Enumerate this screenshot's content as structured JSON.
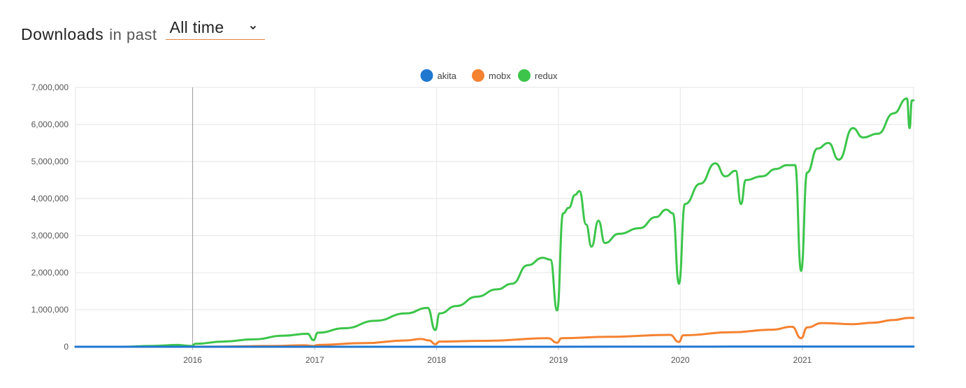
{
  "header": {
    "title": "Downloads",
    "subtitle": "in past",
    "period_select": {
      "value": "All time"
    }
  },
  "chart_data": {
    "type": "line",
    "xlabel": "",
    "ylabel": "",
    "ylim": [
      0,
      7000000
    ],
    "yticks": [
      "0",
      "1,000,000",
      "2,000,000",
      "3,000,000",
      "4,000,000",
      "5,000,000",
      "6,000,000",
      "7,000,000"
    ],
    "xticks": [
      "2016",
      "2017",
      "2018",
      "2019",
      "2020",
      "2021"
    ],
    "grid": true,
    "legend_position": "top-center",
    "series": [
      {
        "name": "akita",
        "color": "#1f77d0",
        "points": [
          [
            "2015-01-15",
            0
          ],
          [
            "2017-06-01",
            0
          ],
          [
            "2018-06-01",
            400
          ],
          [
            "2019-06-01",
            1500
          ],
          [
            "2020-06-01",
            3000
          ],
          [
            "2021-11-30",
            5000
          ]
        ]
      },
      {
        "name": "mobx",
        "color": "#f58231",
        "points": [
          [
            "2015-01-15",
            0
          ],
          [
            "2015-12-01",
            0
          ],
          [
            "2016-04-01",
            5000
          ],
          [
            "2016-09-01",
            20000
          ],
          [
            "2016-12-01",
            40000
          ],
          [
            "2016-12-28",
            20000
          ],
          [
            "2017-01-10",
            50000
          ],
          [
            "2017-06-01",
            100000
          ],
          [
            "2017-10-01",
            170000
          ],
          [
            "2017-11-15",
            210000
          ],
          [
            "2017-12-10",
            170000
          ],
          [
            "2017-12-28",
            70000
          ],
          [
            "2018-01-10",
            140000
          ],
          [
            "2018-06-01",
            160000
          ],
          [
            "2018-12-01",
            230000
          ],
          [
            "2018-12-28",
            110000
          ],
          [
            "2019-01-10",
            230000
          ],
          [
            "2019-06-01",
            270000
          ],
          [
            "2019-12-01",
            320000
          ],
          [
            "2019-12-28",
            130000
          ],
          [
            "2020-01-10",
            310000
          ],
          [
            "2020-06-01",
            390000
          ],
          [
            "2020-10-01",
            460000
          ],
          [
            "2020-12-01",
            540000
          ],
          [
            "2020-12-28",
            230000
          ],
          [
            "2021-01-15",
            520000
          ],
          [
            "2021-03-01",
            640000
          ],
          [
            "2021-06-01",
            610000
          ],
          [
            "2021-08-01",
            650000
          ],
          [
            "2021-10-01",
            720000
          ],
          [
            "2021-11-15",
            780000
          ],
          [
            "2021-11-30",
            780000
          ]
        ]
      },
      {
        "name": "redux",
        "color": "#3cc54a",
        "points": [
          [
            "2015-01-15",
            0
          ],
          [
            "2015-06-01",
            0
          ],
          [
            "2015-09-01",
            20000
          ],
          [
            "2015-11-15",
            50000
          ],
          [
            "2015-12-28",
            20000
          ],
          [
            "2016-01-10",
            80000
          ],
          [
            "2016-04-01",
            140000
          ],
          [
            "2016-07-01",
            200000
          ],
          [
            "2016-10-01",
            300000
          ],
          [
            "2016-12-10",
            350000
          ],
          [
            "2016-12-28",
            180000
          ],
          [
            "2017-01-10",
            380000
          ],
          [
            "2017-04-01",
            500000
          ],
          [
            "2017-07-01",
            700000
          ],
          [
            "2017-10-01",
            900000
          ],
          [
            "2017-12-05",
            1050000
          ],
          [
            "2017-12-28",
            450000
          ],
          [
            "2018-01-10",
            900000
          ],
          [
            "2018-03-01",
            1100000
          ],
          [
            "2018-05-01",
            1350000
          ],
          [
            "2018-07-01",
            1550000
          ],
          [
            "2018-08-15",
            1700000
          ],
          [
            "2018-10-01",
            2200000
          ],
          [
            "2018-11-15",
            2400000
          ],
          [
            "2018-12-08",
            2350000
          ],
          [
            "2018-12-28",
            980000
          ],
          [
            "2019-01-15",
            3600000
          ],
          [
            "2019-02-01",
            3750000
          ],
          [
            "2019-02-20",
            4100000
          ],
          [
            "2019-03-05",
            4200000
          ],
          [
            "2019-03-25",
            3300000
          ],
          [
            "2019-04-10",
            2700000
          ],
          [
            "2019-05-01",
            3400000
          ],
          [
            "2019-05-20",
            2800000
          ],
          [
            "2019-07-01",
            3050000
          ],
          [
            "2019-09-01",
            3200000
          ],
          [
            "2019-10-20",
            3500000
          ],
          [
            "2019-11-20",
            3700000
          ],
          [
            "2019-12-10",
            3600000
          ],
          [
            "2019-12-28",
            1700000
          ],
          [
            "2020-01-15",
            3850000
          ],
          [
            "2020-03-01",
            4400000
          ],
          [
            "2020-04-15",
            4950000
          ],
          [
            "2020-05-15",
            4600000
          ],
          [
            "2020-06-15",
            4750000
          ],
          [
            "2020-07-01",
            3850000
          ],
          [
            "2020-07-15",
            4500000
          ],
          [
            "2020-09-01",
            4600000
          ],
          [
            "2020-10-15",
            4800000
          ],
          [
            "2020-11-15",
            4900000
          ],
          [
            "2020-12-10",
            4900000
          ],
          [
            "2020-12-28",
            2050000
          ],
          [
            "2021-01-15",
            4700000
          ],
          [
            "2021-02-15",
            5350000
          ],
          [
            "2021-03-20",
            5500000
          ],
          [
            "2021-04-20",
            5050000
          ],
          [
            "2021-06-01",
            5900000
          ],
          [
            "2021-07-01",
            5650000
          ],
          [
            "2021-08-15",
            5750000
          ],
          [
            "2021-10-01",
            6300000
          ],
          [
            "2021-11-10",
            6700000
          ],
          [
            "2021-11-18",
            5900000
          ],
          [
            "2021-11-25",
            6650000
          ],
          [
            "2021-11-30",
            6650000
          ]
        ]
      }
    ]
  }
}
